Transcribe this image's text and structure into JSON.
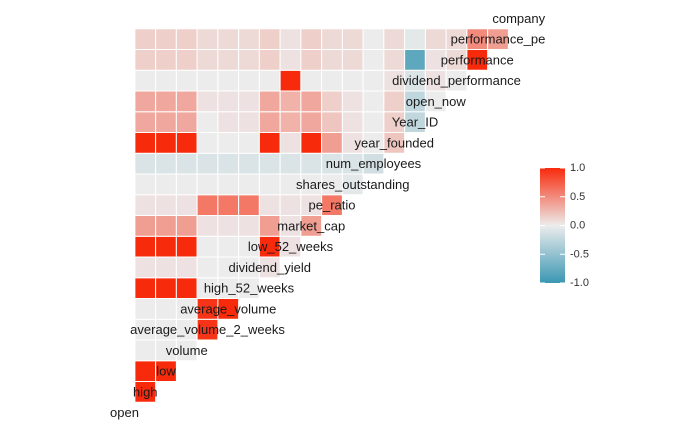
{
  "chart_data": {
    "type": "heatmap",
    "title": "",
    "variables": [
      "open",
      "high",
      "low",
      "volume",
      "average_volume_2_weeks",
      "average_volume",
      "high_52_weeks",
      "dividend_yield",
      "low_52_weeks",
      "market_cap",
      "pe_ratio",
      "shares_outstanding",
      "num_employees",
      "year_founded",
      "Year_ID",
      "open_now",
      "dividend_performance",
      "performance",
      "performance_pe",
      "company"
    ],
    "variable_labels": [
      "open",
      "high",
      "low",
      "volume",
      "average_volume_2_weeks",
      "average_volume",
      "high_52_weeks",
      "dividend_yield",
      "low_52_weeks",
      "market_cap",
      "pe_ratio",
      "shares_outstanding",
      "num_employees",
      "year_founded",
      "Year_ID",
      "open_now",
      "dividend_performance",
      "performance",
      "performance_pe",
      "company"
    ],
    "layout": "lower-triangle",
    "legend": {
      "position": "right",
      "ticks": [
        1.0,
        0.5,
        0.0,
        -0.5,
        -1.0
      ],
      "tick_labels": [
        "1.0",
        "0.5",
        "0.0",
        "-0.5",
        "-1.0"
      ],
      "range": [
        -1,
        1
      ],
      "colors": {
        "low": "#3a97b3",
        "mid": "#ececec",
        "high": "#f82a0c"
      }
    },
    "correlations": [
      {
        "row": "high",
        "col": "open",
        "value": 1.0
      },
      {
        "row": "low",
        "col": "open",
        "value": 1.0
      },
      {
        "row": "low",
        "col": "high",
        "value": 1.0
      },
      {
        "row": "volume",
        "col": "open",
        "value": 0.0
      },
      {
        "row": "volume",
        "col": "high",
        "value": 0.0
      },
      {
        "row": "volume",
        "col": "low",
        "value": 0.0
      },
      {
        "row": "average_volume_2_weeks",
        "col": "open",
        "value": 0.0
      },
      {
        "row": "average_volume_2_weeks",
        "col": "high",
        "value": 0.0
      },
      {
        "row": "average_volume_2_weeks",
        "col": "low",
        "value": 0.0
      },
      {
        "row": "average_volume_2_weeks",
        "col": "volume",
        "value": 0.95
      },
      {
        "row": "average_volume",
        "col": "open",
        "value": 0.0
      },
      {
        "row": "average_volume",
        "col": "high",
        "value": 0.0
      },
      {
        "row": "average_volume",
        "col": "low",
        "value": 0.0
      },
      {
        "row": "average_volume",
        "col": "volume",
        "value": 0.95
      },
      {
        "row": "average_volume",
        "col": "average_volume_2_weeks",
        "value": 1.0
      },
      {
        "row": "high_52_weeks",
        "col": "open",
        "value": 1.0
      },
      {
        "row": "high_52_weeks",
        "col": "high",
        "value": 1.0
      },
      {
        "row": "high_52_weeks",
        "col": "low",
        "value": 1.0
      },
      {
        "row": "high_52_weeks",
        "col": "volume",
        "value": 0.0
      },
      {
        "row": "high_52_weeks",
        "col": "average_volume_2_weeks",
        "value": 0.0
      },
      {
        "row": "high_52_weeks",
        "col": "average_volume",
        "value": 0.0
      },
      {
        "row": "dividend_yield",
        "col": "open",
        "value": 0.05
      },
      {
        "row": "dividend_yield",
        "col": "high",
        "value": 0.05
      },
      {
        "row": "dividend_yield",
        "col": "low",
        "value": 0.05
      },
      {
        "row": "dividend_yield",
        "col": "volume",
        "value": 0.0
      },
      {
        "row": "dividend_yield",
        "col": "average_volume_2_weeks",
        "value": 0.0
      },
      {
        "row": "dividend_yield",
        "col": "average_volume",
        "value": 0.0
      },
      {
        "row": "dividend_yield",
        "col": "high_52_weeks",
        "value": 0.05
      },
      {
        "row": "low_52_weeks",
        "col": "open",
        "value": 1.0
      },
      {
        "row": "low_52_weeks",
        "col": "high",
        "value": 1.0
      },
      {
        "row": "low_52_weeks",
        "col": "low",
        "value": 1.0
      },
      {
        "row": "low_52_weeks",
        "col": "volume",
        "value": 0.0
      },
      {
        "row": "low_52_weeks",
        "col": "average_volume_2_weeks",
        "value": 0.0
      },
      {
        "row": "low_52_weeks",
        "col": "average_volume",
        "value": 0.0
      },
      {
        "row": "low_52_weeks",
        "col": "high_52_weeks",
        "value": 1.0
      },
      {
        "row": "low_52_weeks",
        "col": "dividend_yield",
        "value": 0.05
      },
      {
        "row": "market_cap",
        "col": "open",
        "value": 0.4
      },
      {
        "row": "market_cap",
        "col": "high",
        "value": 0.4
      },
      {
        "row": "market_cap",
        "col": "low",
        "value": 0.4
      },
      {
        "row": "market_cap",
        "col": "volume",
        "value": 0.05
      },
      {
        "row": "market_cap",
        "col": "average_volume_2_weeks",
        "value": 0.05
      },
      {
        "row": "market_cap",
        "col": "average_volume",
        "value": 0.05
      },
      {
        "row": "market_cap",
        "col": "high_52_weeks",
        "value": 0.4
      },
      {
        "row": "market_cap",
        "col": "dividend_yield",
        "value": 0.05
      },
      {
        "row": "market_cap",
        "col": "low_52_weeks",
        "value": 0.4
      },
      {
        "row": "pe_ratio",
        "col": "open",
        "value": 0.05
      },
      {
        "row": "pe_ratio",
        "col": "high",
        "value": 0.05
      },
      {
        "row": "pe_ratio",
        "col": "low",
        "value": 0.05
      },
      {
        "row": "pe_ratio",
        "col": "volume",
        "value": 0.6
      },
      {
        "row": "pe_ratio",
        "col": "average_volume_2_weeks",
        "value": 0.6
      },
      {
        "row": "pe_ratio",
        "col": "average_volume",
        "value": 0.6
      },
      {
        "row": "pe_ratio",
        "col": "high_52_weeks",
        "value": 0.05
      },
      {
        "row": "pe_ratio",
        "col": "dividend_yield",
        "value": 0.05
      },
      {
        "row": "pe_ratio",
        "col": "low_52_weeks",
        "value": 0.05
      },
      {
        "row": "pe_ratio",
        "col": "market_cap",
        "value": 0.6
      },
      {
        "row": "shares_outstanding",
        "col": "open",
        "value": 0.0
      },
      {
        "row": "shares_outstanding",
        "col": "high",
        "value": 0.0
      },
      {
        "row": "shares_outstanding",
        "col": "low",
        "value": 0.0
      },
      {
        "row": "shares_outstanding",
        "col": "volume",
        "value": 0.0
      },
      {
        "row": "shares_outstanding",
        "col": "average_volume_2_weeks",
        "value": 0.0
      },
      {
        "row": "shares_outstanding",
        "col": "average_volume",
        "value": 0.0
      },
      {
        "row": "shares_outstanding",
        "col": "high_52_weeks",
        "value": 0.0
      },
      {
        "row": "shares_outstanding",
        "col": "dividend_yield",
        "value": 0.0
      },
      {
        "row": "shares_outstanding",
        "col": "low_52_weeks",
        "value": 0.0
      },
      {
        "row": "shares_outstanding",
        "col": "market_cap",
        "value": 0.0
      },
      {
        "row": "shares_outstanding",
        "col": "pe_ratio",
        "value": -0.05
      },
      {
        "row": "num_employees",
        "col": "open",
        "value": -0.1
      },
      {
        "row": "num_employees",
        "col": "high",
        "value": -0.1
      },
      {
        "row": "num_employees",
        "col": "low",
        "value": -0.1
      },
      {
        "row": "num_employees",
        "col": "volume",
        "value": -0.1
      },
      {
        "row": "num_employees",
        "col": "average_volume_2_weeks",
        "value": -0.1
      },
      {
        "row": "num_employees",
        "col": "average_volume",
        "value": -0.1
      },
      {
        "row": "num_employees",
        "col": "high_52_weeks",
        "value": -0.1
      },
      {
        "row": "num_employees",
        "col": "dividend_yield",
        "value": -0.1
      },
      {
        "row": "num_employees",
        "col": "low_52_weeks",
        "value": -0.1
      },
      {
        "row": "num_employees",
        "col": "market_cap",
        "value": -0.1
      },
      {
        "row": "num_employees",
        "col": "pe_ratio",
        "value": -0.1
      },
      {
        "row": "num_employees",
        "col": "shares_outstanding",
        "value": -0.15
      },
      {
        "row": "year_founded",
        "col": "open",
        "value": 1.0
      },
      {
        "row": "year_founded",
        "col": "high",
        "value": 1.0
      },
      {
        "row": "year_founded",
        "col": "low",
        "value": 1.0
      },
      {
        "row": "year_founded",
        "col": "volume",
        "value": 0.0
      },
      {
        "row": "year_founded",
        "col": "average_volume_2_weeks",
        "value": 0.0
      },
      {
        "row": "year_founded",
        "col": "average_volume",
        "value": 0.0
      },
      {
        "row": "year_founded",
        "col": "high_52_weeks",
        "value": 1.0
      },
      {
        "row": "year_founded",
        "col": "dividend_yield",
        "value": 0.05
      },
      {
        "row": "year_founded",
        "col": "low_52_weeks",
        "value": 1.0
      },
      {
        "row": "year_founded",
        "col": "market_cap",
        "value": 0.4
      },
      {
        "row": "year_founded",
        "col": "pe_ratio",
        "value": 0.05
      },
      {
        "row": "year_founded",
        "col": "shares_outstanding",
        "value": 0.0
      },
      {
        "row": "year_founded",
        "col": "num_employees",
        "value": 0.2
      },
      {
        "row": "Year_ID",
        "col": "open",
        "value": 0.35
      },
      {
        "row": "Year_ID",
        "col": "high",
        "value": 0.35
      },
      {
        "row": "Year_ID",
        "col": "low",
        "value": 0.35
      },
      {
        "row": "Year_ID",
        "col": "volume",
        "value": 0.0
      },
      {
        "row": "Year_ID",
        "col": "average_volume_2_weeks",
        "value": 0.05
      },
      {
        "row": "Year_ID",
        "col": "average_volume",
        "value": 0.05
      },
      {
        "row": "Year_ID",
        "col": "high_52_weeks",
        "value": 0.35
      },
      {
        "row": "Year_ID",
        "col": "dividend_yield",
        "value": 0.3
      },
      {
        "row": "Year_ID",
        "col": "low_52_weeks",
        "value": 0.35
      },
      {
        "row": "Year_ID",
        "col": "market_cap",
        "value": 0.2
      },
      {
        "row": "Year_ID",
        "col": "pe_ratio",
        "value": 0.05
      },
      {
        "row": "Year_ID",
        "col": "shares_outstanding",
        "value": 0.0
      },
      {
        "row": "Year_ID",
        "col": "num_employees",
        "value": 0.15
      },
      {
        "row": "Year_ID",
        "col": "year_founded",
        "value": -0.25
      },
      {
        "row": "open_now",
        "col": "open",
        "value": 0.35
      },
      {
        "row": "open_now",
        "col": "high",
        "value": 0.35
      },
      {
        "row": "open_now",
        "col": "low",
        "value": 0.35
      },
      {
        "row": "open_now",
        "col": "volume",
        "value": 0.05
      },
      {
        "row": "open_now",
        "col": "average_volume_2_weeks",
        "value": 0.05
      },
      {
        "row": "open_now",
        "col": "average_volume",
        "value": 0.05
      },
      {
        "row": "open_now",
        "col": "high_52_weeks",
        "value": 0.35
      },
      {
        "row": "open_now",
        "col": "dividend_yield",
        "value": 0.3
      },
      {
        "row": "open_now",
        "col": "low_52_weeks",
        "value": 0.35
      },
      {
        "row": "open_now",
        "col": "market_cap",
        "value": 0.15
      },
      {
        "row": "open_now",
        "col": "pe_ratio",
        "value": 0.05
      },
      {
        "row": "open_now",
        "col": "shares_outstanding",
        "value": 0.0
      },
      {
        "row": "open_now",
        "col": "num_employees",
        "value": 0.15
      },
      {
        "row": "open_now",
        "col": "year_founded",
        "value": -0.25
      },
      {
        "row": "open_now",
        "col": "Year_ID",
        "value": 0.0
      },
      {
        "row": "dividend_performance",
        "col": "open",
        "value": 0.0
      },
      {
        "row": "dividend_performance",
        "col": "high",
        "value": 0.0
      },
      {
        "row": "dividend_performance",
        "col": "low",
        "value": 0.0
      },
      {
        "row": "dividend_performance",
        "col": "volume",
        "value": 0.0
      },
      {
        "row": "dividend_performance",
        "col": "average_volume_2_weeks",
        "value": 0.0
      },
      {
        "row": "dividend_performance",
        "col": "average_volume",
        "value": 0.0
      },
      {
        "row": "dividend_performance",
        "col": "high_52_weeks",
        "value": 0.0
      },
      {
        "row": "dividend_performance",
        "col": "dividend_yield",
        "value": 1.0
      },
      {
        "row": "dividend_performance",
        "col": "low_52_weeks",
        "value": 0.0
      },
      {
        "row": "dividend_performance",
        "col": "market_cap",
        "value": 0.0
      },
      {
        "row": "dividend_performance",
        "col": "pe_ratio",
        "value": 0.0
      },
      {
        "row": "dividend_performance",
        "col": "shares_outstanding",
        "value": 0.0
      },
      {
        "row": "dividend_performance",
        "col": "num_employees",
        "value": 0.05
      },
      {
        "row": "dividend_performance",
        "col": "year_founded",
        "value": -0.1
      },
      {
        "row": "dividend_performance",
        "col": "Year_ID",
        "value": 0.05
      },
      {
        "row": "dividend_performance",
        "col": "open_now",
        "value": 0.0
      },
      {
        "row": "performance",
        "col": "open",
        "value": 0.15
      },
      {
        "row": "performance",
        "col": "high",
        "value": 0.15
      },
      {
        "row": "performance",
        "col": "low",
        "value": 0.15
      },
      {
        "row": "performance",
        "col": "volume",
        "value": 0.1
      },
      {
        "row": "performance",
        "col": "average_volume_2_weeks",
        "value": 0.1
      },
      {
        "row": "performance",
        "col": "average_volume",
        "value": 0.1
      },
      {
        "row": "performance",
        "col": "high_52_weeks",
        "value": 0.15
      },
      {
        "row": "performance",
        "col": "dividend_yield",
        "value": 0.05
      },
      {
        "row": "performance",
        "col": "low_52_weeks",
        "value": 0.15
      },
      {
        "row": "performance",
        "col": "market_cap",
        "value": 0.1
      },
      {
        "row": "performance",
        "col": "pe_ratio",
        "value": 0.1
      },
      {
        "row": "performance",
        "col": "shares_outstanding",
        "value": 0.0
      },
      {
        "row": "performance",
        "col": "num_employees",
        "value": 0.1
      },
      {
        "row": "performance",
        "col": "year_founded",
        "value": -0.8
      },
      {
        "row": "performance",
        "col": "Year_ID",
        "value": 0.05
      },
      {
        "row": "performance",
        "col": "open_now",
        "value": 0.1
      },
      {
        "row": "performance",
        "col": "dividend_performance",
        "value": 1.0
      },
      {
        "row": "performance_pe",
        "col": "open",
        "value": 0.15
      },
      {
        "row": "performance_pe",
        "col": "high",
        "value": 0.15
      },
      {
        "row": "performance_pe",
        "col": "low",
        "value": 0.15
      },
      {
        "row": "performance_pe",
        "col": "volume",
        "value": 0.1
      },
      {
        "row": "performance_pe",
        "col": "average_volume_2_weeks",
        "value": 0.1
      },
      {
        "row": "performance_pe",
        "col": "average_volume",
        "value": 0.1
      },
      {
        "row": "performance_pe",
        "col": "high_52_weeks",
        "value": 0.15
      },
      {
        "row": "performance_pe",
        "col": "dividend_yield",
        "value": 0.05
      },
      {
        "row": "performance_pe",
        "col": "low_52_weeks",
        "value": 0.15
      },
      {
        "row": "performance_pe",
        "col": "market_cap",
        "value": 0.1
      },
      {
        "row": "performance_pe",
        "col": "pe_ratio",
        "value": 0.1
      },
      {
        "row": "performance_pe",
        "col": "shares_outstanding",
        "value": 0.0
      },
      {
        "row": "performance_pe",
        "col": "num_employees",
        "value": 0.1
      },
      {
        "row": "performance_pe",
        "col": "year_founded",
        "value": -0.05
      },
      {
        "row": "performance_pe",
        "col": "Year_ID",
        "value": 0.1
      },
      {
        "row": "performance_pe",
        "col": "open_now",
        "value": 0.1
      },
      {
        "row": "performance_pe",
        "col": "dividend_performance",
        "value": 0.5
      },
      {
        "row": "performance_pe",
        "col": "performance",
        "value": 0.4
      }
    ]
  }
}
